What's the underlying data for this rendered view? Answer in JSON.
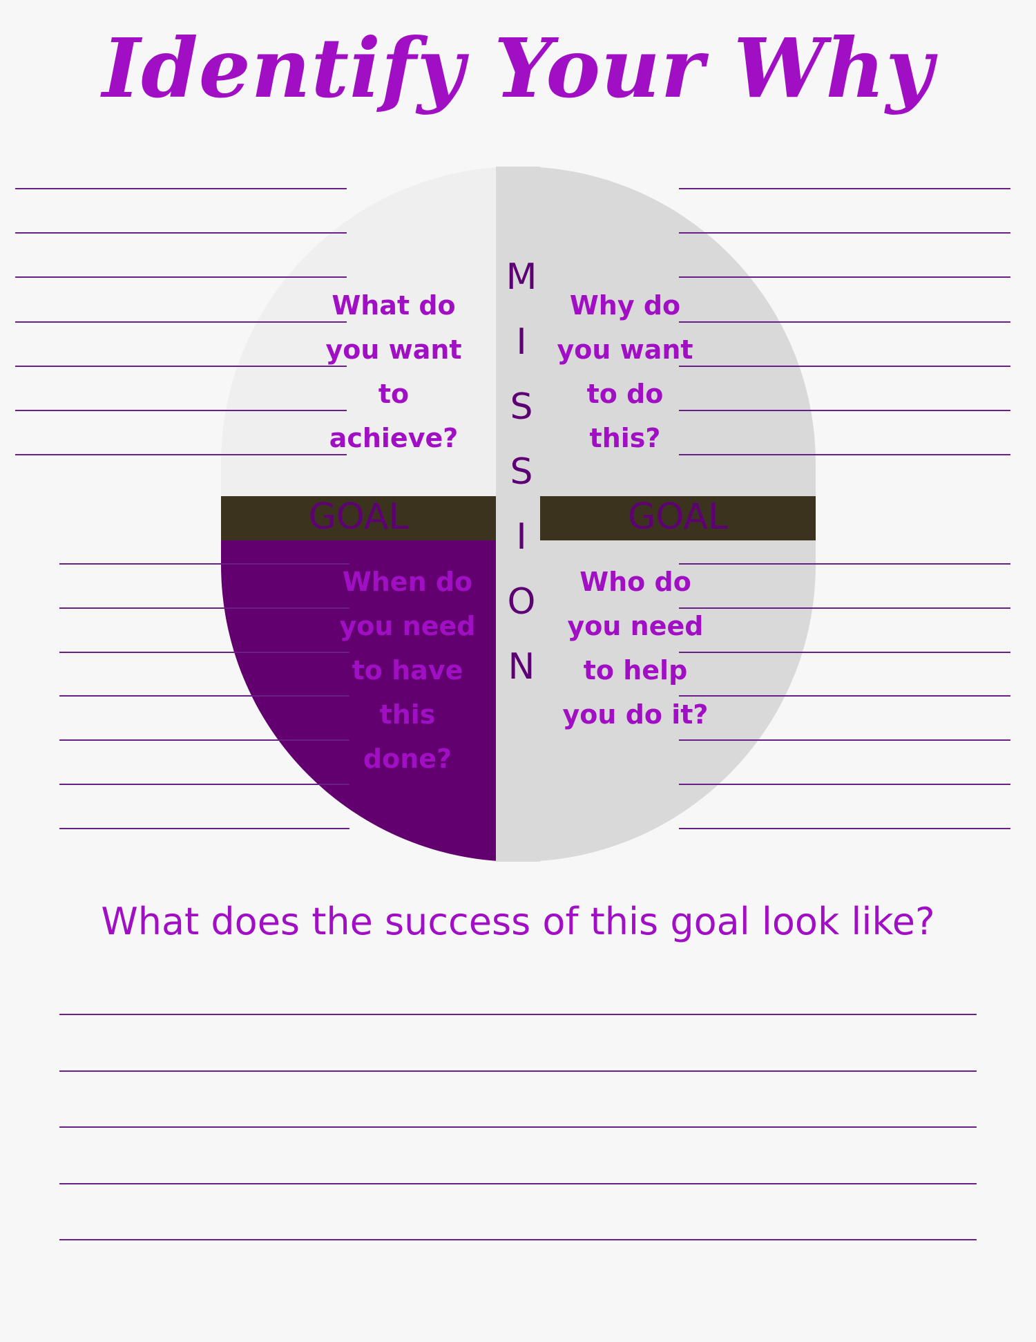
{
  "title": "Identify Your Why",
  "colors": {
    "accent": "#a00fc4",
    "rule": "#6a1f86",
    "quadrant_light": "#efefef",
    "quadrant_gray": "#d9d9d9",
    "quadrant_purple": "#620070",
    "goal_bar": "#3b331e",
    "goal_text": "#5c0073",
    "mission_text": "#5c0073"
  },
  "mission_letters": [
    "M",
    "I",
    "S",
    "S",
    "I",
    "O",
    "N"
  ],
  "goal_labels": {
    "left": "GOAL",
    "right": "GOAL"
  },
  "quadrants": {
    "top_left": [
      "What do",
      "you want",
      "to",
      "achieve?"
    ],
    "top_right": [
      "Why do",
      "you want",
      "to do",
      "this?"
    ],
    "bottom_left": [
      "When do",
      "you need",
      "to have",
      "this",
      "done?"
    ],
    "bottom_right": [
      "Who do",
      "you need",
      "to help",
      "you do it?"
    ]
  },
  "success_question": "What does the success of this goal look like?"
}
